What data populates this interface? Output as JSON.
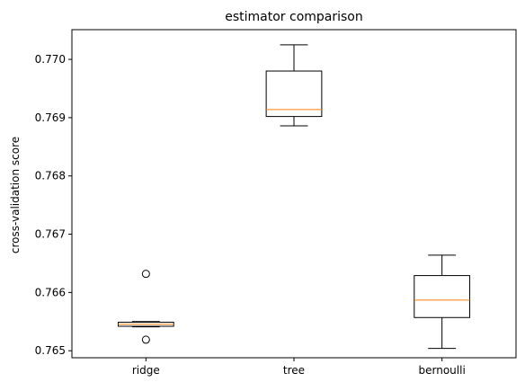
{
  "chart_data": {
    "type": "boxplot",
    "title": "estimator comparison",
    "xlabel": "",
    "ylabel": "cross-validation score",
    "ylim": [
      0.76488,
      0.77051
    ],
    "yticks": [
      0.765,
      0.766,
      0.767,
      0.768,
      0.769,
      0.77
    ],
    "ytick_labels": [
      "0.765",
      "0.766",
      "0.767",
      "0.768",
      "0.769",
      "0.770"
    ],
    "categories": [
      "ridge",
      "tree",
      "bernoulli"
    ],
    "boxes": [
      {
        "label": "ridge",
        "whisker_low": 0.76541,
        "q1": 0.76542,
        "median": 0.765455,
        "q3": 0.76549,
        "whisker_high": 0.7655,
        "outliers": [
          0.76632,
          0.76519
        ]
      },
      {
        "label": "tree",
        "whisker_low": 0.76886,
        "q1": 0.76902,
        "median": 0.76914,
        "q3": 0.7698,
        "whisker_high": 0.77025,
        "outliers": []
      },
      {
        "label": "bernoulli",
        "whisker_low": 0.76504,
        "q1": 0.76557,
        "median": 0.76587,
        "q3": 0.76629,
        "whisker_high": 0.76664,
        "outliers": []
      }
    ],
    "grid": false,
    "colors": {
      "box": "#000000",
      "median": "#ff7f0e",
      "outlier": "#000000"
    }
  }
}
